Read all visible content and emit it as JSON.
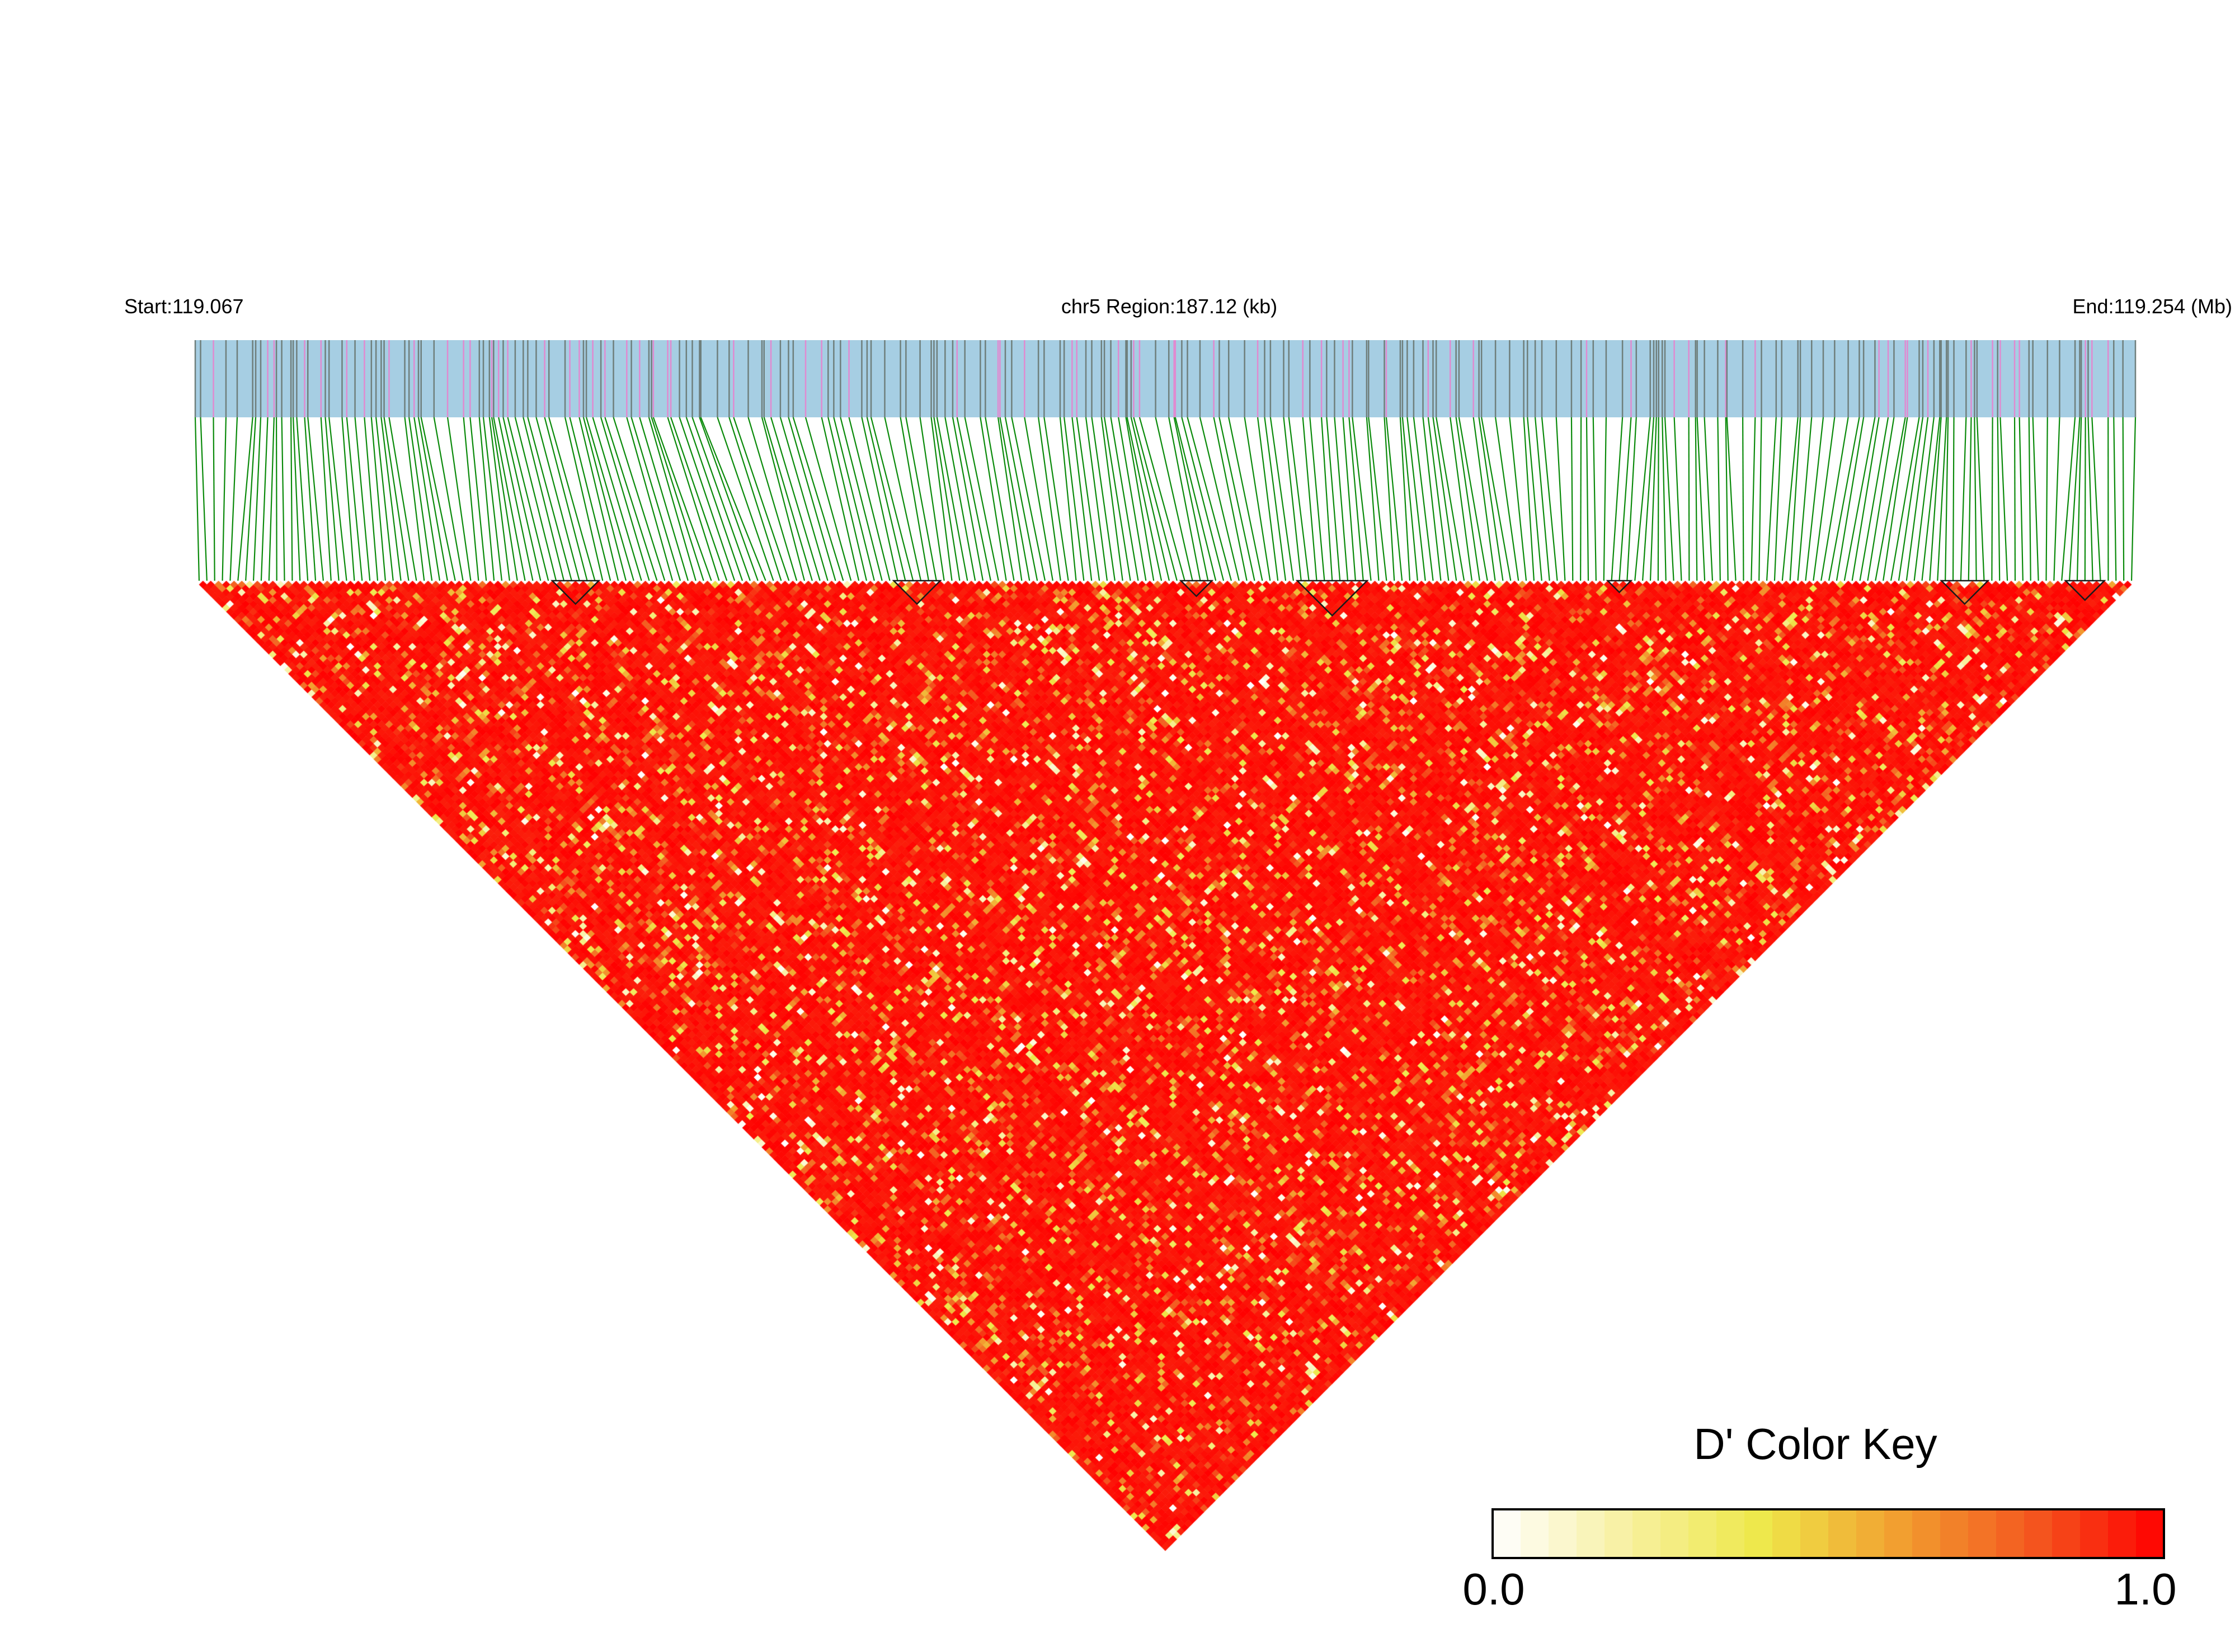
{
  "header": {
    "start_label": "Start:119.067",
    "region_label": "chr5 Region:187.12 (kb)",
    "end_label": "End:119.254 (Mb)"
  },
  "colors": {
    "track_background": "#a6cee3",
    "snp_tick_gray": "#6f7f7c",
    "snp_tick_pink": "#e08ad0",
    "connector_green": "#0a8a0a",
    "block_outline": "#1a1a1a",
    "high_ld": "#ff0000",
    "mid_ld": "#f5a623",
    "low_ld": "#fffbe0"
  },
  "chart_data": {
    "type": "heatmap",
    "title": "",
    "region": {
      "chromosome": "chr5",
      "start_mb": 119.067,
      "end_mb": 119.254,
      "length_kb": 187.12
    },
    "snp_count_estimate": 250,
    "cell_value_summary": "pairwise D' values, predominantly 0.9-1.0 (red) with scattered low values (pale yellow/white)",
    "color_key": {
      "title": "D' Color Key",
      "min": 0.0,
      "max": 1.0,
      "min_label": "0.0",
      "max_label": "1.0",
      "stops": [
        "#ffffff",
        "#f7f0a0",
        "#eee84a",
        "#f2a030",
        "#f35a20",
        "#ff0000"
      ]
    }
  }
}
